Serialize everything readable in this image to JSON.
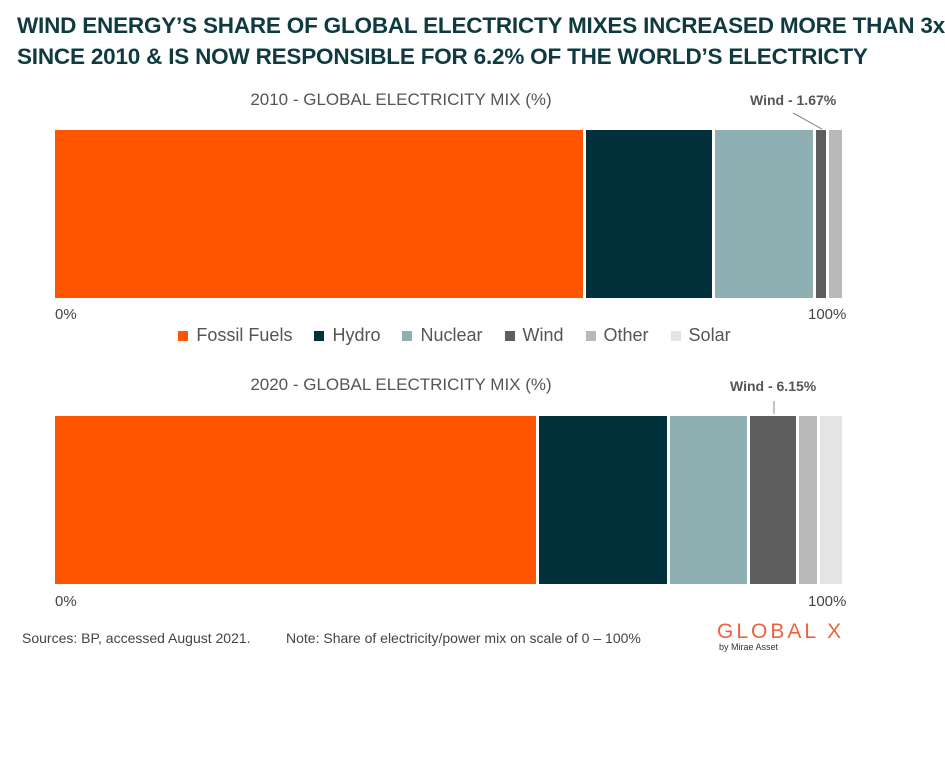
{
  "headline": {
    "line1": "WIND ENERGY’S SHARE OF GLOBAL ELECTRICTY MIXES INCREASED MORE THAN 3x",
    "line2": "SINCE 2010 & IS NOW RESPONSIBLE FOR 6.2% OF THE WORLD’S ELECTRICTY"
  },
  "legend": [
    {
      "name": "Fossil Fuels",
      "color": "#ff5500"
    },
    {
      "name": "Hydro",
      "color": "#01303a"
    },
    {
      "name": "Nuclear",
      "color": "#8eb0b2"
    },
    {
      "name": "Wind",
      "color": "#5e5e5e"
    },
    {
      "name": "Other",
      "color": "#b9b9b9"
    },
    {
      "name": "Solar",
      "color": "#e4e4e4"
    }
  ],
  "chart_data": [
    {
      "type": "bar",
      "orientation": "horizontal-stacked",
      "title": "2010 - GLOBAL ELECTRICITY MIX (%)",
      "xlim": [
        0,
        100
      ],
      "axis_min_label": "0%",
      "axis_max_label": "100%",
      "series": [
        {
          "name": "Fossil Fuels",
          "values": [
            67.2
          ]
        },
        {
          "name": "Hydro",
          "values": [
            16.3
          ]
        },
        {
          "name": "Nuclear",
          "values": [
            12.8
          ]
        },
        {
          "name": "Wind",
          "values": [
            1.67
          ]
        },
        {
          "name": "Other",
          "values": [
            2.0
          ]
        },
        {
          "name": "Solar",
          "values": [
            0.03
          ]
        }
      ],
      "annotation": "Wind - 1.67%"
    },
    {
      "type": "bar",
      "orientation": "horizontal-stacked",
      "title": "2020 - GLOBAL ELECTRICITY MIX (%)",
      "xlim": [
        0,
        100
      ],
      "axis_min_label": "0%",
      "axis_max_label": "100%",
      "series": [
        {
          "name": "Fossil Fuels",
          "values": [
            61.3
          ]
        },
        {
          "name": "Hydro",
          "values": [
            16.6
          ]
        },
        {
          "name": "Nuclear",
          "values": [
            10.1
          ]
        },
        {
          "name": "Wind",
          "values": [
            6.15
          ]
        },
        {
          "name": "Other",
          "values": [
            2.7
          ]
        },
        {
          "name": "Solar",
          "values": [
            3.15
          ]
        }
      ],
      "annotation": "Wind - 6.15%"
    }
  ],
  "footer": {
    "sources": "Sources: BP, accessed August 2021.",
    "note": "Note: Share of electricity/power mix on scale of 0 – 100%"
  },
  "logo": {
    "main": "GLOBAL X",
    "sub": "by Mirae Asset"
  }
}
